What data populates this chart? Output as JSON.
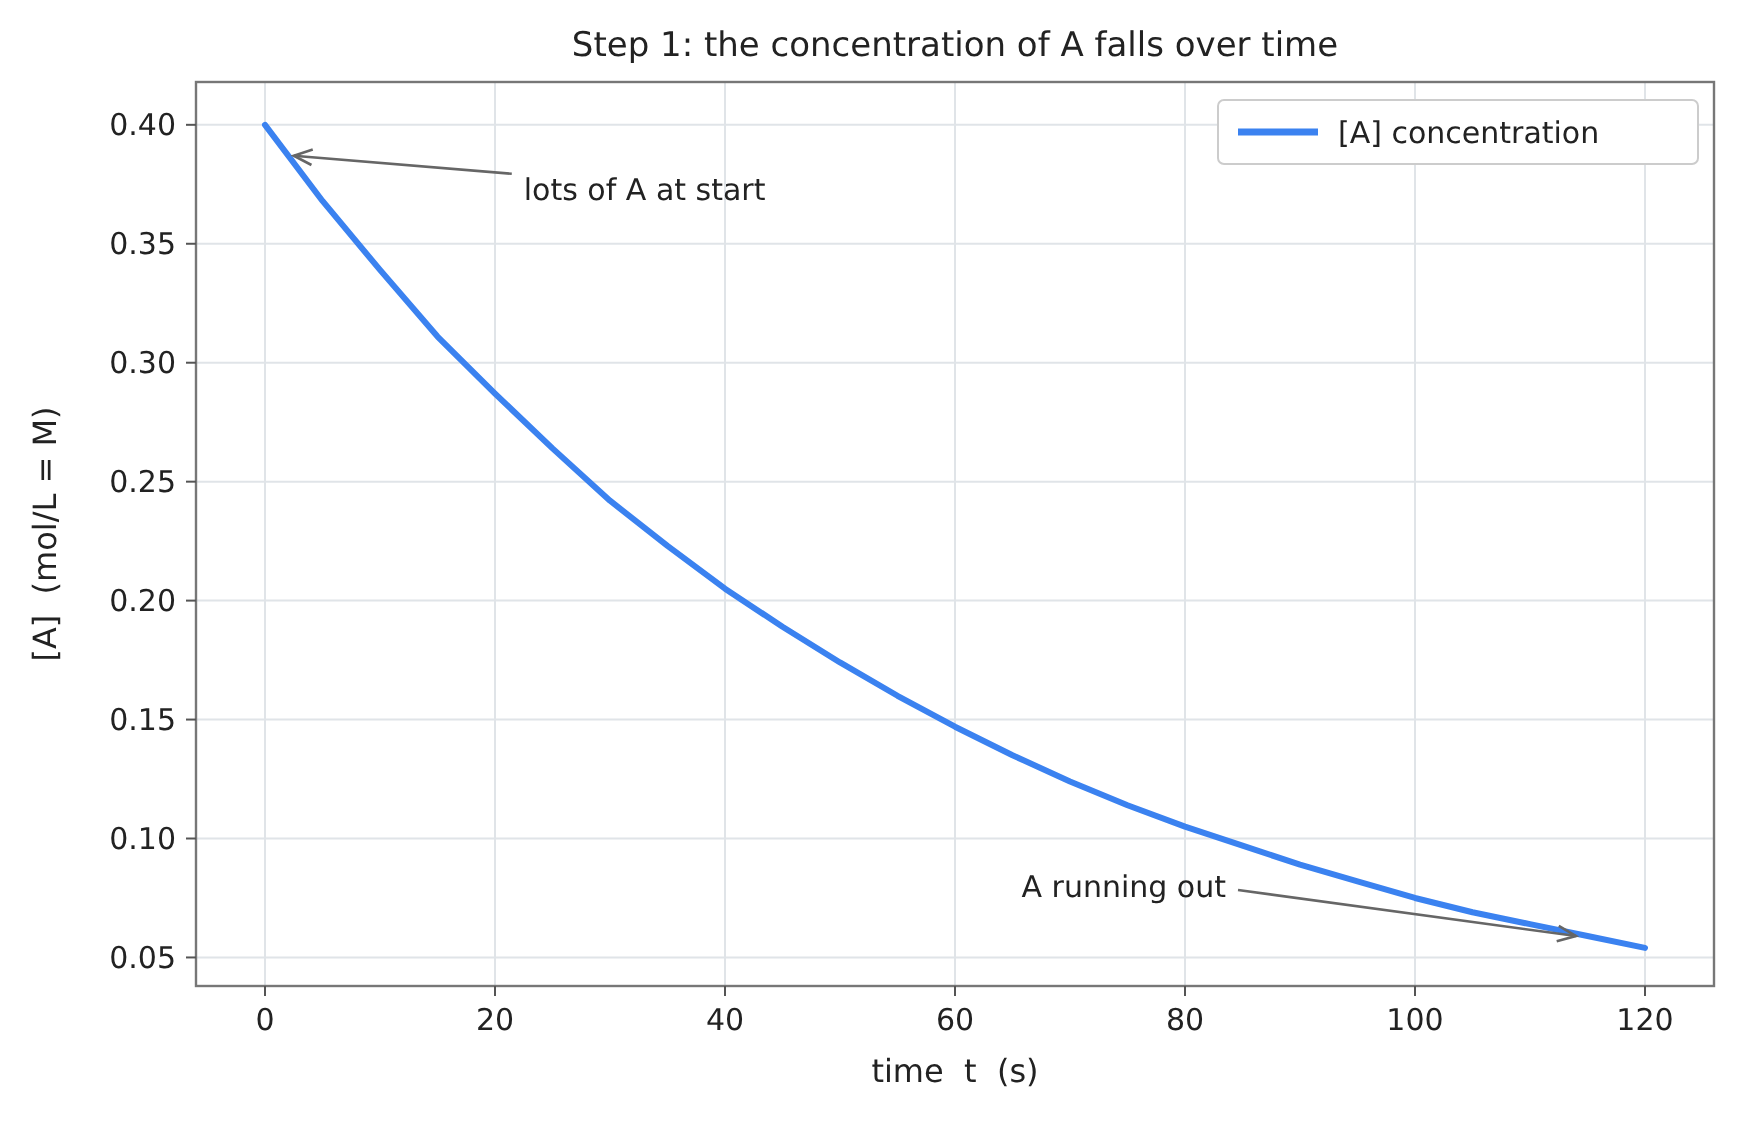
{
  "chart_data": {
    "type": "line",
    "title": "Step 1: the concentration of A falls over time",
    "xlabel": "time  t  (s)",
    "ylabel": "[A]  (mol/L = M)",
    "x": [
      0,
      5,
      10,
      15,
      20,
      25,
      30,
      35,
      40,
      45,
      50,
      55,
      60,
      65,
      70,
      75,
      80,
      85,
      90,
      95,
      100,
      105,
      110,
      115,
      120
    ],
    "series": [
      {
        "name": "[A] concentration",
        "color": "#3b82f0",
        "values": [
          0.4,
          0.368,
          0.339,
          0.311,
          0.287,
          0.264,
          0.242,
          0.223,
          0.205,
          0.189,
          0.174,
          0.16,
          0.147,
          0.135,
          0.124,
          0.114,
          0.105,
          0.097,
          0.089,
          0.082,
          0.075,
          0.069,
          0.064,
          0.059,
          0.054
        ]
      }
    ],
    "xlim": [
      -6,
      126
    ],
    "ylim": [
      0.038,
      0.418
    ],
    "xticks": [
      0,
      20,
      40,
      60,
      80,
      100,
      120
    ],
    "yticks": [
      {
        "value": 0.05,
        "label": "0.05"
      },
      {
        "value": 0.1,
        "label": "0.10"
      },
      {
        "value": 0.15,
        "label": "0.15"
      },
      {
        "value": 0.2,
        "label": "0.20"
      },
      {
        "value": 0.25,
        "label": "0.25"
      },
      {
        "value": 0.3,
        "label": "0.30"
      },
      {
        "value": 0.35,
        "label": "0.35"
      },
      {
        "value": 0.4,
        "label": "0.40"
      }
    ],
    "grid": true,
    "legend": "top right",
    "marker": "none",
    "line_style": "solid",
    "annotations": [
      {
        "text": "lots of A at start",
        "x": 2.5,
        "y": 0.387
      },
      {
        "text": "A running out",
        "x": 114,
        "y": 0.059
      }
    ]
  }
}
